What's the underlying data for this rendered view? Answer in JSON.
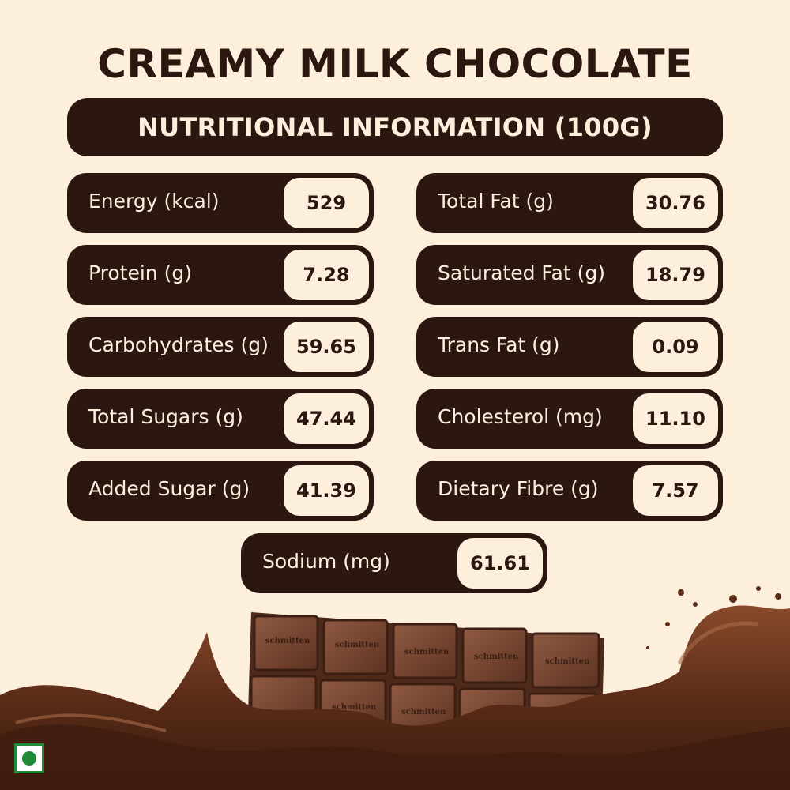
{
  "title": "CREAMY MILK CHOCOLATE",
  "banner": "NUTRITIONAL INFORMATION (100G)",
  "nutrients": [
    {
      "label": "Energy (kcal)",
      "value": "529"
    },
    {
      "label": "Total Fat (g)",
      "value": "30.76"
    },
    {
      "label": "Protein (g)",
      "value": "7.28"
    },
    {
      "label": "Saturated Fat (g)",
      "value": "18.79"
    },
    {
      "label": "Carbohydrates (g)",
      "value": "59.65"
    },
    {
      "label": "Trans Fat (g)",
      "value": "0.09"
    },
    {
      "label": "Total Sugars (g)",
      "value": "47.44"
    },
    {
      "label": "Cholesterol (mg)",
      "value": "11.10"
    },
    {
      "label": "Added Sugar (g)",
      "value": "41.39"
    },
    {
      "label": "Dietary Fibre (g)",
      "value": "7.57"
    },
    {
      "label": "Sodium (mg)",
      "value": "61.61"
    }
  ],
  "bar_brand": "schmitten",
  "colors": {
    "background": "#fcefdc",
    "dark_brown": "#2c1610",
    "chocolate": "#6b3a24",
    "veg_green": "#1f8a3a"
  },
  "icons": {
    "veg_mark": "veg-symbol-icon"
  }
}
